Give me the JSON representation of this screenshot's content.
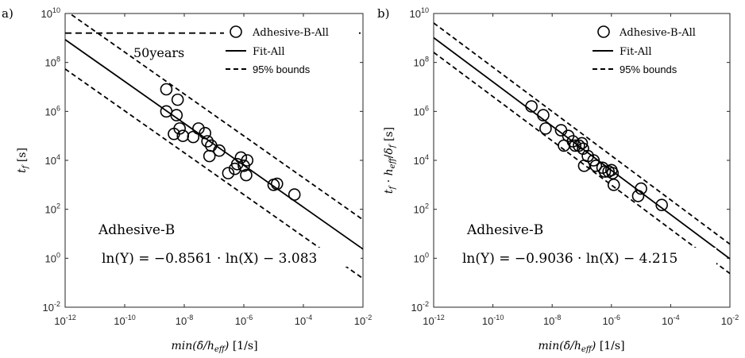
{
  "chart_data": [
    {
      "panel_label": "a)",
      "type": "scatter",
      "x_scale": "log",
      "y_scale": "log",
      "xlim": [
        1e-12,
        0.01
      ],
      "ylim": [
        0.01,
        10000000000.0
      ],
      "x_ticks": [
        "10^-12",
        "10^-10",
        "10^-8",
        "10^-6",
        "10^-4",
        "10^-2"
      ],
      "y_ticks": [
        "10^-2",
        "10^0",
        "10^2",
        "10^4",
        "10^6",
        "10^8",
        "10^10"
      ],
      "xlabel": "min(δ̇/h_eff) [1/s]",
      "ylabel": "t_f [s]",
      "legend": {
        "position": "top-right",
        "entries": [
          "Adhesive-B-All",
          "Fit-All",
          "95% bounds"
        ]
      },
      "annotations": [
        "50years",
        "Adhesive-B",
        "ln(Y) = −0.8561 · ln(X) − 3.083"
      ],
      "reference_line": {
        "y": 1580000000.0
      },
      "fit": {
        "slope": -0.8561,
        "intercept": -3.083
      },
      "bounds_offset_decades": 1.2,
      "series": [
        {
          "name": "Adhesive-B-All",
          "x": [
            2.5e-09,
            2.5e-09,
            4.5e-09,
            5.5e-09,
            6e-09,
            7e-09,
            9e-09,
            2e-08,
            3e-08,
            5e-08,
            6e-08,
            7e-08,
            8e-08,
            1.5e-07,
            3e-07,
            5e-07,
            6e-07,
            8e-07,
            1e-06,
            1.2e-06,
            1.3e-06,
            1e-05,
            1.3e-05,
            5e-05
          ],
          "y": [
            8000000.0,
            1000000.0,
            120000.0,
            700000.0,
            3000000.0,
            200000.0,
            100000.0,
            90000.0,
            200000.0,
            130000.0,
            60000.0,
            15000.0,
            40000.0,
            25000.0,
            3000.0,
            4500.0,
            7000.0,
            13000.0,
            6000.0,
            2500.0,
            10000.0,
            1000.0,
            1100.0,
            400.0
          ]
        }
      ]
    },
    {
      "panel_label": "b)",
      "type": "scatter",
      "x_scale": "log",
      "y_scale": "log",
      "xlim": [
        1e-12,
        0.01
      ],
      "ylim": [
        0.01,
        10000000000.0
      ],
      "x_ticks": [
        "10^-12",
        "10^-10",
        "10^-8",
        "10^-6",
        "10^-4",
        "10^-2"
      ],
      "y_ticks": [
        "10^-2",
        "10^0",
        "10^2",
        "10^4",
        "10^6",
        "10^8",
        "10^10"
      ],
      "xlabel": "min(δ̇/h_eff) [1/s]",
      "ylabel": "t_f · h_eff/δ_f [s]",
      "legend": {
        "position": "top-right",
        "entries": [
          "Adhesive-B-All",
          "Fit-All",
          "95% bounds"
        ]
      },
      "annotations": [
        "Adhesive-B",
        "ln(Y) = −0.9036 · ln(X) − 4.215"
      ],
      "fit": {
        "slope": -0.9036,
        "intercept": -4.215
      },
      "bounds_offset_decades": 0.6,
      "series": [
        {
          "name": "Adhesive-B-All",
          "x": [
            2e-09,
            5e-09,
            6e-09,
            2e-08,
            2.5e-08,
            3.5e-08,
            5e-08,
            6e-08,
            8e-08,
            1e-07,
            1.1e-07,
            1.2e-07,
            1.6e-07,
            2.5e-07,
            3e-07,
            5e-07,
            6e-07,
            8e-07,
            1e-06,
            1.1e-06,
            1.2e-06,
            8e-06,
            1e-05,
            5e-05
          ],
          "y": [
            1600000.0,
            700000.0,
            200000.0,
            170000.0,
            40000.0,
            100000.0,
            60000.0,
            40000.0,
            40000.0,
            50000.0,
            30000.0,
            6000.0,
            15000.0,
            10000.0,
            6000.0,
            5000.0,
            3500.0,
            3500.0,
            4000.0,
            3000.0,
            1000.0,
            350.0,
            700.0,
            150.0
          ]
        }
      ]
    }
  ]
}
